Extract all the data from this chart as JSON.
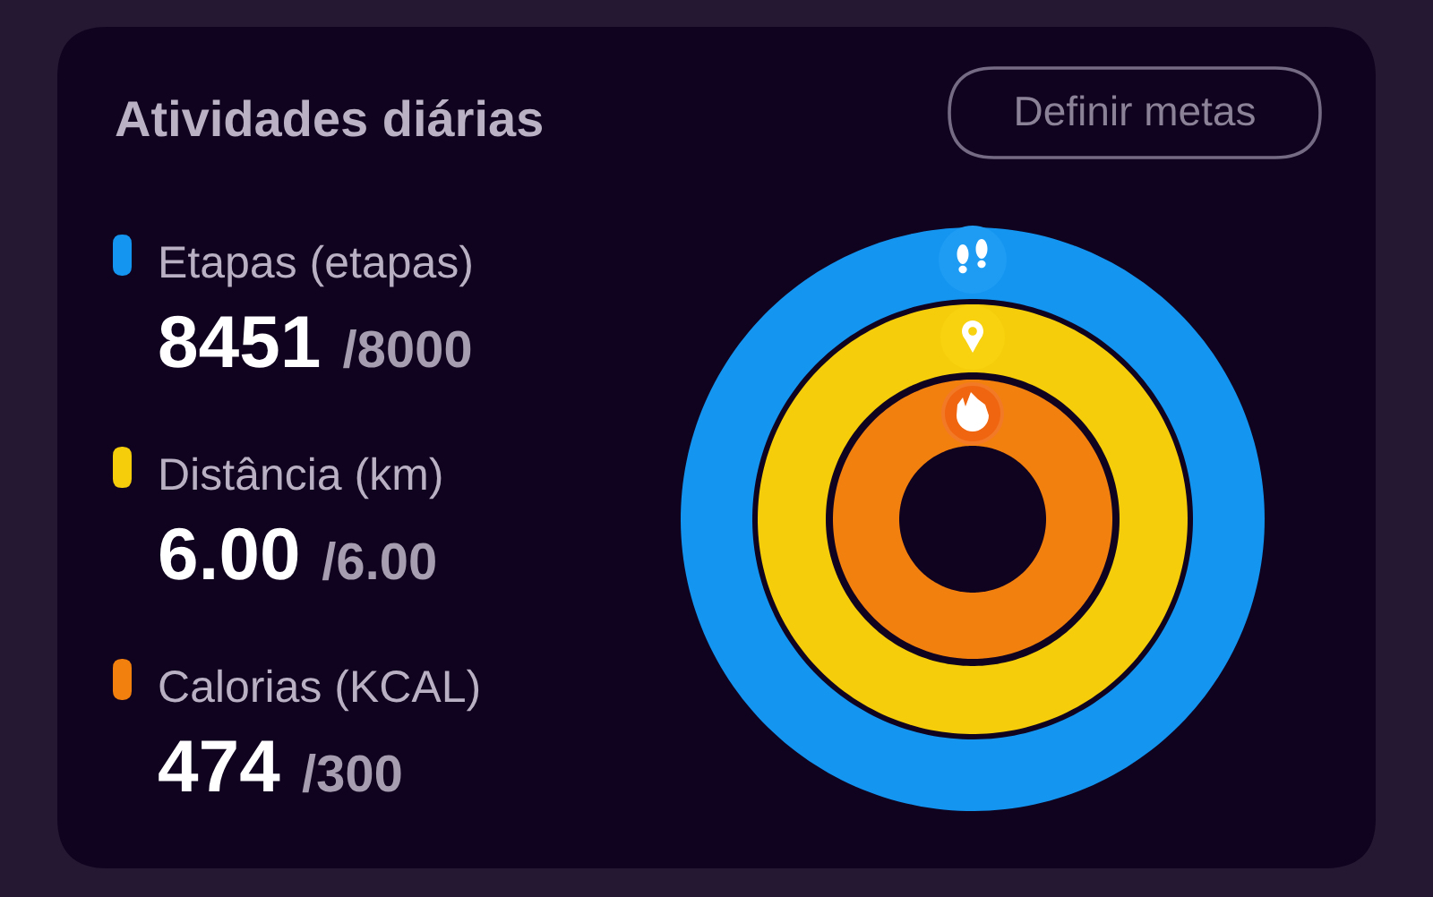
{
  "chart_data": {
    "type": "other",
    "title": "Atividades diárias",
    "categories": [
      "Etapas (etapas)",
      "Distância (km)",
      "Calorias (KCAL)"
    ],
    "series": [
      {
        "values": [
          8451,
          6.0,
          474
        ],
        "value_labels": [
          "8451",
          "6.00",
          "474"
        ],
        "colors": [
          "#1495f0",
          "#f5cd0a",
          "#f2800f"
        ]
      },
      {
        "values": [
          8000,
          6.0,
          300
        ],
        "value_labels": [
          "/8000",
          "/6.00",
          "/300"
        ]
      }
    ],
    "annotations": [
      "Definir metas"
    ]
  }
}
